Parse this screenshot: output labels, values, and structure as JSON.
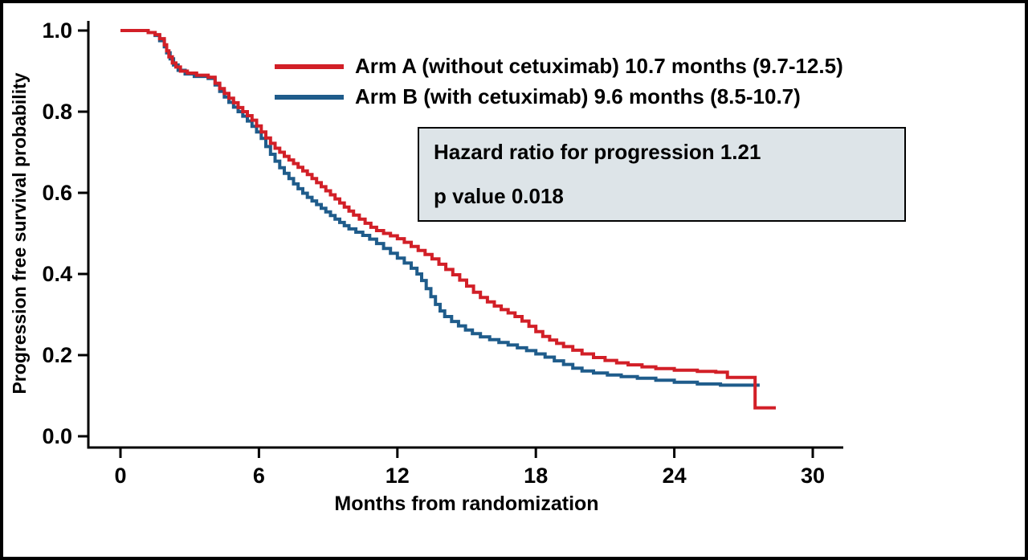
{
  "frame": {
    "border_color": "#000000",
    "background": "#ffffff"
  },
  "chart_data": {
    "type": "line",
    "subtype": "kaplan_meier_step",
    "title": "",
    "xlabel": "Months from randomization",
    "ylabel": "Progression free survival probability",
    "xlim": [
      0,
      30
    ],
    "ylim": [
      0,
      1.0
    ],
    "xtick_values": [
      0,
      6,
      12,
      18,
      24,
      30
    ],
    "xtick_labels": [
      "0",
      "6",
      "12",
      "18",
      "24",
      "30"
    ],
    "ytick_values": [
      0.0,
      0.2,
      0.4,
      0.6,
      0.8,
      1.0
    ],
    "ytick_labels": [
      "0.0",
      "0.2",
      "0.4",
      "0.6",
      "0.8",
      "1.0"
    ],
    "grid": false,
    "legend_position": "top-inside",
    "series": [
      {
        "id": "arm-a",
        "name": "Arm A (without cetuximab) 10.7 months (9.7-12.5)",
        "median_months": 10.7,
        "ci": "9.7-12.5",
        "color": "#d21f27",
        "points": [
          [
            0,
            1.0
          ],
          [
            0.4,
            1.0
          ],
          [
            1.2,
            0.995
          ],
          [
            1.5,
            0.99
          ],
          [
            1.7,
            0.98
          ],
          [
            1.9,
            0.965
          ],
          [
            2.0,
            0.95
          ],
          [
            2.1,
            0.935
          ],
          [
            2.25,
            0.92
          ],
          [
            2.4,
            0.91
          ],
          [
            2.6,
            0.9
          ],
          [
            2.9,
            0.895
          ],
          [
            3.3,
            0.89
          ],
          [
            3.8,
            0.885
          ],
          [
            4.1,
            0.87
          ],
          [
            4.3,
            0.857
          ],
          [
            4.5,
            0.845
          ],
          [
            4.7,
            0.833
          ],
          [
            4.9,
            0.822
          ],
          [
            5.1,
            0.81
          ],
          [
            5.3,
            0.8
          ],
          [
            5.5,
            0.79
          ],
          [
            5.7,
            0.779
          ],
          [
            5.9,
            0.765
          ],
          [
            6.1,
            0.75
          ],
          [
            6.3,
            0.735
          ],
          [
            6.5,
            0.722
          ],
          [
            6.7,
            0.71
          ],
          [
            6.9,
            0.7
          ],
          [
            7.1,
            0.69
          ],
          [
            7.3,
            0.681
          ],
          [
            7.5,
            0.672
          ],
          [
            7.7,
            0.663
          ],
          [
            7.9,
            0.654
          ],
          [
            8.1,
            0.645
          ],
          [
            8.3,
            0.635
          ],
          [
            8.5,
            0.625
          ],
          [
            8.7,
            0.615
          ],
          [
            8.9,
            0.605
          ],
          [
            9.1,
            0.595
          ],
          [
            9.3,
            0.585
          ],
          [
            9.5,
            0.575
          ],
          [
            9.7,
            0.565
          ],
          [
            9.9,
            0.555
          ],
          [
            10.1,
            0.545
          ],
          [
            10.35,
            0.535
          ],
          [
            10.6,
            0.525
          ],
          [
            10.85,
            0.515
          ],
          [
            11.1,
            0.507
          ],
          [
            11.4,
            0.5
          ],
          [
            11.7,
            0.494
          ],
          [
            12.0,
            0.487
          ],
          [
            12.3,
            0.478
          ],
          [
            12.6,
            0.468
          ],
          [
            12.9,
            0.458
          ],
          [
            13.2,
            0.448
          ],
          [
            13.5,
            0.437
          ],
          [
            13.8,
            0.424
          ],
          [
            14.1,
            0.411
          ],
          [
            14.4,
            0.398
          ],
          [
            14.7,
            0.385
          ],
          [
            15.0,
            0.37
          ],
          [
            15.3,
            0.355
          ],
          [
            15.6,
            0.342
          ],
          [
            15.9,
            0.331
          ],
          [
            16.2,
            0.321
          ],
          [
            16.5,
            0.312
          ],
          [
            16.8,
            0.304
          ],
          [
            17.1,
            0.295
          ],
          [
            17.4,
            0.284
          ],
          [
            17.7,
            0.271
          ],
          [
            18.0,
            0.258
          ],
          [
            18.3,
            0.246
          ],
          [
            18.6,
            0.237
          ],
          [
            18.9,
            0.229
          ],
          [
            19.2,
            0.221
          ],
          [
            19.6,
            0.212
          ],
          [
            20.0,
            0.203
          ],
          [
            20.5,
            0.194
          ],
          [
            21.0,
            0.187
          ],
          [
            21.5,
            0.181
          ],
          [
            22.0,
            0.176
          ],
          [
            22.6,
            0.171
          ],
          [
            23.2,
            0.167
          ],
          [
            24.0,
            0.163
          ],
          [
            25.0,
            0.16
          ],
          [
            25.8,
            0.158
          ],
          [
            26.3,
            0.145
          ],
          [
            27.5,
            0.07
          ],
          [
            28.4,
            0.07
          ]
        ]
      },
      {
        "id": "arm-b",
        "name": "Arm B (with cetuximab) 9.6 months (8.5-10.7)",
        "median_months": 9.6,
        "ci": "8.5-10.7",
        "color": "#1f5c8b",
        "points": [
          [
            0,
            1.0
          ],
          [
            0.4,
            1.0
          ],
          [
            1.2,
            0.995
          ],
          [
            1.5,
            0.988
          ],
          [
            1.7,
            0.975
          ],
          [
            1.9,
            0.96
          ],
          [
            2.0,
            0.945
          ],
          [
            2.15,
            0.93
          ],
          [
            2.3,
            0.915
          ],
          [
            2.5,
            0.902
          ],
          [
            2.8,
            0.893
          ],
          [
            3.2,
            0.887
          ],
          [
            3.8,
            0.882
          ],
          [
            4.1,
            0.866
          ],
          [
            4.3,
            0.85
          ],
          [
            4.5,
            0.836
          ],
          [
            4.7,
            0.823
          ],
          [
            4.9,
            0.811
          ],
          [
            5.1,
            0.8
          ],
          [
            5.3,
            0.789
          ],
          [
            5.5,
            0.777
          ],
          [
            5.7,
            0.764
          ],
          [
            5.9,
            0.75
          ],
          [
            6.1,
            0.734
          ],
          [
            6.3,
            0.714
          ],
          [
            6.5,
            0.695
          ],
          [
            6.7,
            0.678
          ],
          [
            6.9,
            0.662
          ],
          [
            7.1,
            0.648
          ],
          [
            7.3,
            0.635
          ],
          [
            7.5,
            0.622
          ],
          [
            7.7,
            0.61
          ],
          [
            7.9,
            0.599
          ],
          [
            8.1,
            0.589
          ],
          [
            8.3,
            0.58
          ],
          [
            8.5,
            0.571
          ],
          [
            8.7,
            0.562
          ],
          [
            8.9,
            0.553
          ],
          [
            9.1,
            0.544
          ],
          [
            9.3,
            0.535
          ],
          [
            9.5,
            0.527
          ],
          [
            9.7,
            0.519
          ],
          [
            9.9,
            0.511
          ],
          [
            10.2,
            0.503
          ],
          [
            10.5,
            0.495
          ],
          [
            10.8,
            0.486
          ],
          [
            11.1,
            0.475
          ],
          [
            11.4,
            0.463
          ],
          [
            11.7,
            0.451
          ],
          [
            12.0,
            0.439
          ],
          [
            12.3,
            0.427
          ],
          [
            12.6,
            0.414
          ],
          [
            12.85,
            0.4
          ],
          [
            13.05,
            0.384
          ],
          [
            13.25,
            0.364
          ],
          [
            13.45,
            0.344
          ],
          [
            13.65,
            0.325
          ],
          [
            13.85,
            0.309
          ],
          [
            14.05,
            0.295
          ],
          [
            14.35,
            0.283
          ],
          [
            14.65,
            0.272
          ],
          [
            14.95,
            0.262
          ],
          [
            15.25,
            0.253
          ],
          [
            15.6,
            0.245
          ],
          [
            16.0,
            0.238
          ],
          [
            16.4,
            0.231
          ],
          [
            16.8,
            0.225
          ],
          [
            17.2,
            0.218
          ],
          [
            17.6,
            0.211
          ],
          [
            18.0,
            0.203
          ],
          [
            18.4,
            0.195
          ],
          [
            18.8,
            0.186
          ],
          [
            19.2,
            0.177
          ],
          [
            19.6,
            0.168
          ],
          [
            20.0,
            0.161
          ],
          [
            20.5,
            0.156
          ],
          [
            21.1,
            0.151
          ],
          [
            21.7,
            0.147
          ],
          [
            22.4,
            0.143
          ],
          [
            23.2,
            0.138
          ],
          [
            24.0,
            0.133
          ],
          [
            25.0,
            0.129
          ],
          [
            26.0,
            0.126
          ],
          [
            27.7,
            0.126
          ]
        ]
      }
    ],
    "annotation": {
      "lines": [
        "Hazard ratio for progression 1.21",
        "p value 0.018"
      ],
      "background": "#dde4e8",
      "border_color": "#000000"
    }
  }
}
